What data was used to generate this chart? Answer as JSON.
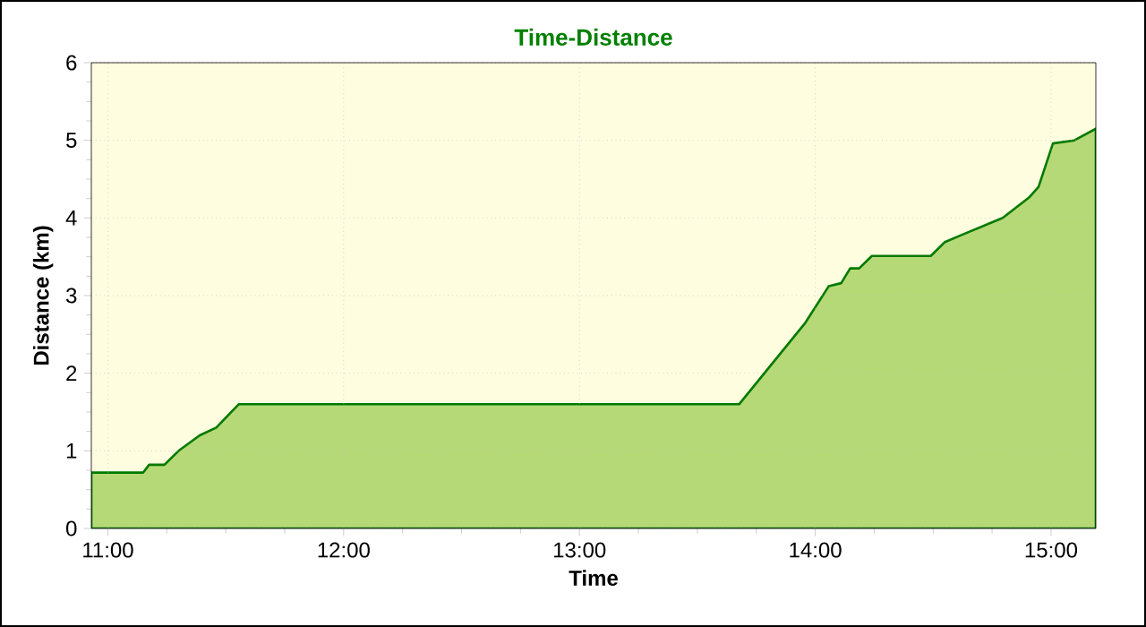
{
  "chart_data": {
    "type": "area",
    "title": "Time-Distance",
    "xlabel": "Time",
    "ylabel": "Distance (km)",
    "x": [
      10.93,
      11.15,
      11.175,
      11.24,
      11.3,
      11.39,
      11.46,
      11.555,
      13.58,
      13.677,
      13.958,
      14.057,
      14.11,
      14.148,
      14.186,
      14.24,
      14.49,
      14.55,
      14.62,
      14.795,
      14.909,
      14.947,
      15.008,
      15.099,
      15.19
    ],
    "series": [
      {
        "color": "#b6d977",
        "values": [
          0.72,
          0.72,
          0.82,
          0.82,
          1.0,
          1.2,
          1.3,
          1.6,
          1.6,
          1.6,
          2.65,
          3.12,
          3.16,
          3.35,
          3.35,
          3.51,
          3.51,
          3.69,
          3.78,
          4.0,
          4.27,
          4.4,
          4.96,
          5.0,
          5.15
        ]
      }
    ],
    "xlim": [
      10.93,
      15.19
    ],
    "ylim": [
      0,
      6
    ],
    "xticks": [
      {
        "value": 11,
        "label": "11:00"
      },
      {
        "value": 12,
        "label": "12:00"
      },
      {
        "value": 13,
        "label": "13:00"
      },
      {
        "value": 14,
        "label": "14:00"
      },
      {
        "value": 15,
        "label": "15:00"
      }
    ],
    "yticks": [
      0,
      1,
      2,
      3,
      4,
      5,
      6
    ],
    "grid": true,
    "line_style": "solid",
    "marker": "none"
  }
}
